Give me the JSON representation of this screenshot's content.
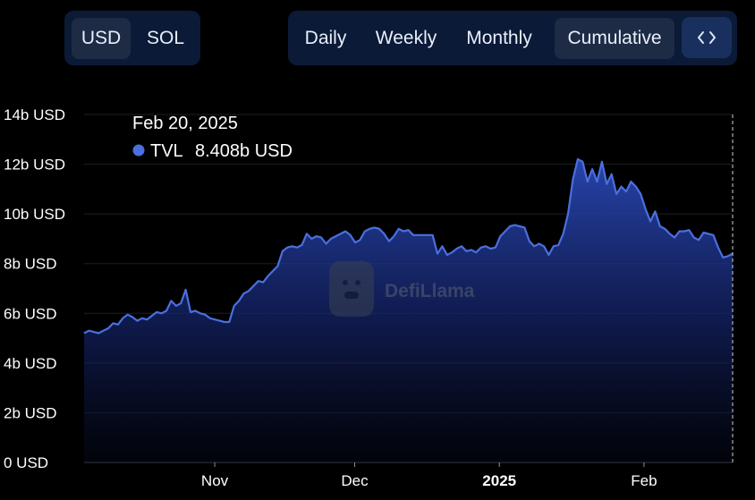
{
  "currency_toggle": {
    "items": [
      {
        "label": "USD",
        "active": true
      },
      {
        "label": "SOL",
        "active": false
      }
    ]
  },
  "period_toggle": {
    "items": [
      {
        "label": "Daily",
        "active": false
      },
      {
        "label": "Weekly",
        "active": false
      },
      {
        "label": "Monthly",
        "active": false
      },
      {
        "label": "Cumulative",
        "active": true
      }
    ],
    "embed_icon": "code-brackets-icon"
  },
  "tooltip": {
    "date": "Feb 20, 2025",
    "series_label": "TVL",
    "value": "8.408b USD",
    "marker_color": "#4b6fe0"
  },
  "watermark": {
    "text": "DefiLlama",
    "icon": "llama-logo-icon"
  },
  "colors": {
    "line": "#4b6fe0",
    "fill_top": "#2a48b5",
    "background": "#000000",
    "button_bg": "#0b1a36",
    "active_button_bg": "#1e2b44"
  },
  "chart_data": {
    "type": "area",
    "title": "",
    "xlabel": "",
    "ylabel": "",
    "ylim": [
      0,
      14
    ],
    "y_unit": "b USD",
    "y_ticks": [
      "0 USD",
      "2b USD",
      "4b USD",
      "6b USD",
      "8b USD",
      "10b USD",
      "12b USD",
      "14b USD"
    ],
    "x_ticks": [
      {
        "label": "Nov",
        "day": 28,
        "bold": false
      },
      {
        "label": "Dec",
        "day": 58,
        "bold": false
      },
      {
        "label": "2025",
        "day": 89,
        "bold": true
      },
      {
        "label": "Feb",
        "day": 120,
        "bold": false
      }
    ],
    "x_range_days": [
      0,
      139
    ],
    "grid": "horizontal",
    "series": [
      {
        "name": "TVL",
        "values": [
          5.2,
          5.3,
          5.25,
          5.2,
          5.3,
          5.4,
          5.6,
          5.55,
          5.8,
          5.95,
          5.85,
          5.7,
          5.8,
          5.75,
          5.9,
          6.05,
          6.0,
          6.1,
          6.5,
          6.3,
          6.4,
          6.95,
          6.05,
          6.1,
          6.0,
          5.95,
          5.8,
          5.75,
          5.7,
          5.65,
          5.65,
          6.3,
          6.5,
          6.8,
          6.9,
          7.1,
          7.3,
          7.25,
          7.5,
          7.7,
          7.9,
          8.5,
          8.65,
          8.7,
          8.65,
          8.75,
          9.2,
          9.0,
          9.1,
          9.05,
          8.8,
          9.0,
          9.1,
          9.2,
          9.3,
          9.15,
          8.85,
          8.95,
          9.3,
          9.4,
          9.45,
          9.4,
          9.2,
          8.9,
          9.1,
          9.4,
          9.3,
          9.35,
          9.15,
          9.15,
          9.15,
          9.15,
          9.15,
          8.4,
          8.7,
          8.35,
          8.45,
          8.6,
          8.7,
          8.5,
          8.55,
          8.45,
          8.65,
          8.7,
          8.6,
          8.65,
          9.1,
          9.3,
          9.5,
          9.55,
          9.5,
          9.45,
          8.9,
          8.7,
          8.8,
          8.7,
          8.35,
          8.7,
          8.75,
          9.2,
          10.0,
          11.4,
          12.2,
          12.1,
          11.3,
          11.8,
          11.3,
          12.1,
          11.2,
          11.6,
          10.8,
          11.1,
          10.9,
          11.3,
          11.1,
          10.8,
          10.2,
          9.7,
          10.1,
          9.5,
          9.4,
          9.2,
          9.05,
          9.3,
          9.3,
          9.35,
          9.05,
          8.95,
          9.25,
          9.2,
          9.15,
          8.65,
          8.25,
          8.3,
          8.408
        ]
      }
    ]
  }
}
